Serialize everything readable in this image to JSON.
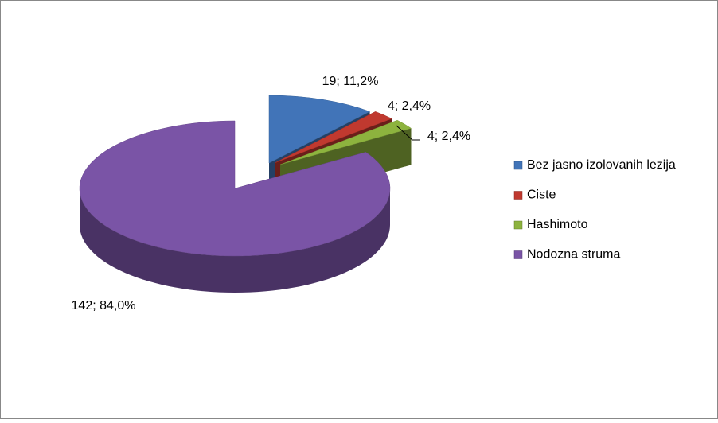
{
  "chart_data": {
    "type": "pie3d",
    "categories": [
      "Bez jasno izolovanih lezija",
      "Ciste",
      "Hashimoto",
      "Nodozna struma"
    ],
    "values": [
      19,
      4,
      4,
      142
    ],
    "value_labels": [
      "19; 11,2%",
      "4; 2,4%",
      "4; 2,4%",
      "142; 84,0%"
    ],
    "colors": [
      "#4174b8",
      "#c0392f",
      "#8db33e",
      "#7a54a6"
    ],
    "legend": "right"
  }
}
